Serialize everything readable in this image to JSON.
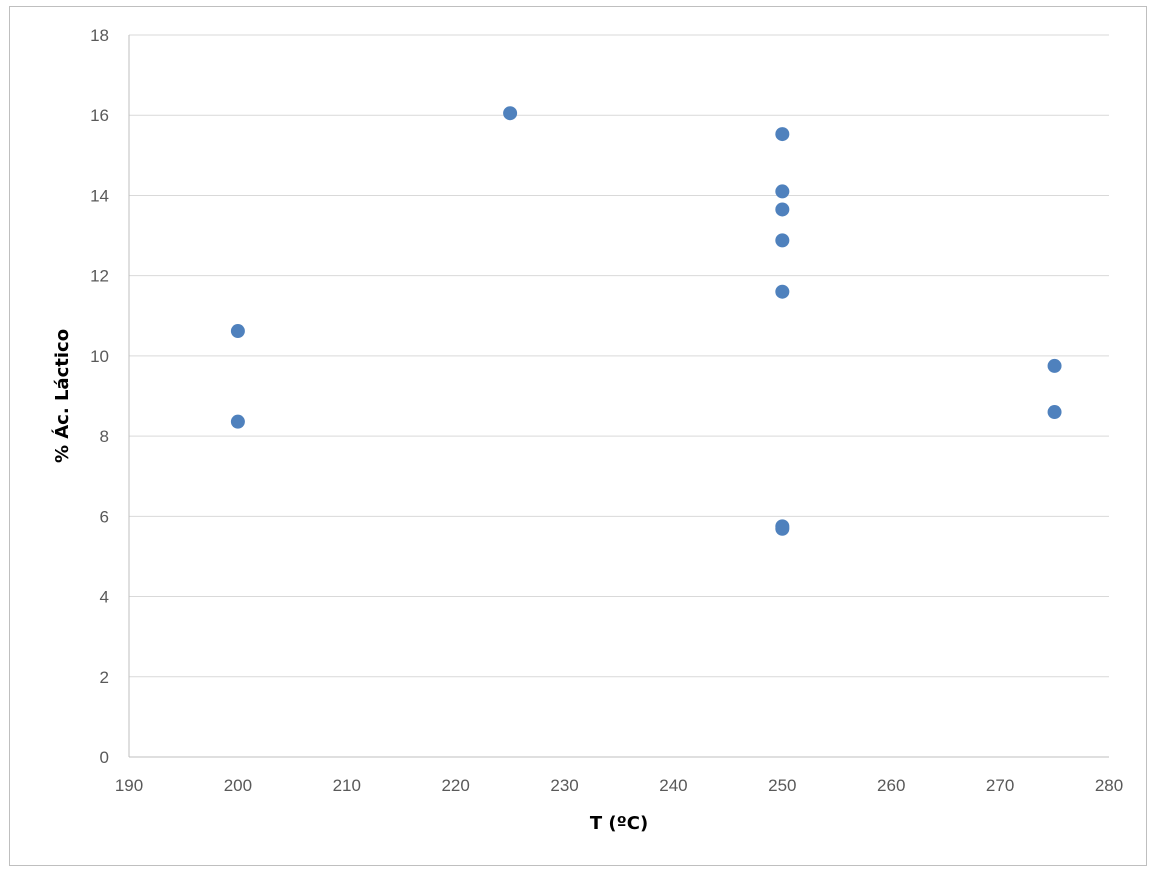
{
  "chart_data": {
    "type": "scatter",
    "title": "",
    "xlabel": "T (ºC)",
    "ylabel": "% Ác. Láctico",
    "xlim": [
      190,
      280
    ],
    "ylim": [
      0,
      18
    ],
    "xticks": [
      190,
      200,
      210,
      220,
      230,
      240,
      250,
      260,
      270,
      280
    ],
    "yticks": [
      0,
      2,
      4,
      6,
      8,
      10,
      12,
      14,
      16,
      18
    ],
    "grid": "horizontal",
    "legend": "none",
    "marker_color": "#4f81bd",
    "series": [
      {
        "x": [
          200,
          200,
          225,
          250,
          250,
          250,
          250,
          250,
          250,
          250,
          275,
          275
        ],
        "y": [
          10.62,
          8.36,
          16.05,
          15.53,
          14.1,
          13.65,
          12.88,
          11.6,
          5.75,
          5.69,
          9.75,
          8.6
        ]
      }
    ]
  }
}
